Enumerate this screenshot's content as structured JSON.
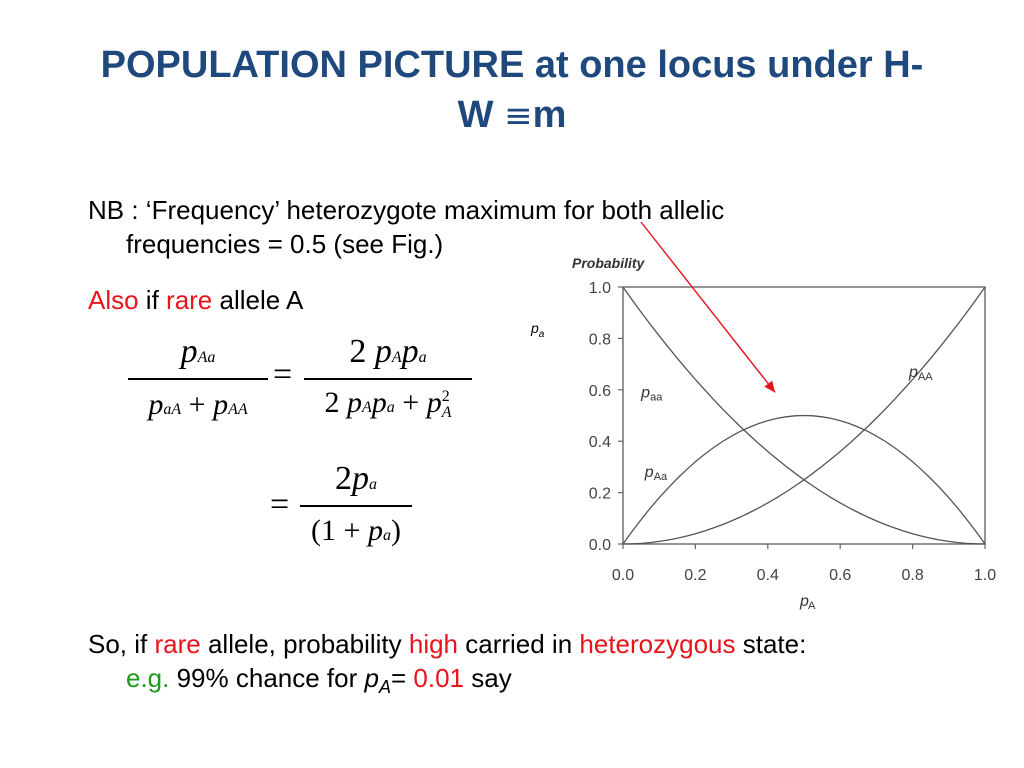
{
  "title": {
    "line1": "POPULATION PICTURE at one locus under H-",
    "line2_pre": "W ",
    "line2_sym": "≡",
    "line2_post": "m"
  },
  "body": {
    "nb_line1": "NB : ‘Frequency’ heterozygote maximum for both allelic",
    "nb_line2": "frequencies  = 0.5 (see Fig.)",
    "also": "Also",
    "if": " if ",
    "rare": "rare",
    "allele_a": " allele A",
    "so_line1_a": "So, if ",
    "so_rare": "rare",
    "so_line1_b": " allele, probability ",
    "so_high": "high",
    "so_line1_c": " carried in ",
    "so_hetero": "heterozygous",
    "so_line1_d": " state:",
    "eg": "e.g.",
    "so_line2_a": " 99% chance for ",
    "so_pa": "p",
    "so_pa_sub": "A",
    "so_line2_b": "= ",
    "so_value": "0.01",
    "so_line2_c": " say",
    "pa_note": "p",
    "pa_note_sub": "a"
  },
  "formula": {
    "num1": "p",
    "num1_sub": "Aa",
    "den1_a": "p",
    "den1_a_sub": "aA",
    "den1_plus": " + ",
    "den1_b": "p",
    "den1_b_sub": "AA",
    "equals": "=",
    "num2_coef": "2",
    "num2_p1": "p",
    "num2_p1_sub": "A",
    "num2_p2": "p",
    "num2_p2_sub": "a",
    "den2_coef": "2",
    "den2_p1": "p",
    "den2_p1_sub": "A",
    "den2_p2": "p",
    "den2_p2_sub": "a",
    "den2_plus": " + ",
    "den2_p3": "p",
    "den2_p3_sub": "A",
    "den2_p3_sup": "2",
    "num3_coef": "2",
    "num3_p": "p",
    "num3_p_sub": "a",
    "den3_open": "(1",
    "den3_plus": " + ",
    "den3_p": "p",
    "den3_p_sub": "a",
    "den3_close": ")"
  },
  "chart_data": {
    "type": "line",
    "ylabel": "Probability",
    "xlabel": "p",
    "xlabel_sub": "A",
    "xlim": [
      0,
      1
    ],
    "ylim": [
      0,
      1
    ],
    "x_ticks": [
      "0.0",
      "0.2",
      "0.4",
      "0.6",
      "0.8",
      "1.0"
    ],
    "y_ticks": [
      "0.0",
      "0.2",
      "0.4",
      "0.6",
      "0.8",
      "1.0"
    ],
    "grid": false,
    "series": [
      {
        "name": "p",
        "sub": "aa",
        "formula": "(1-x)^2",
        "label_at": [
          0.05,
          0.57
        ]
      },
      {
        "name": "p",
        "sub": "Aa",
        "formula": "2x(1-x)",
        "label_at": [
          0.06,
          0.26
        ]
      },
      {
        "name": "p",
        "sub": "AA",
        "formula": "x^2",
        "label_at": [
          0.79,
          0.65
        ]
      }
    ],
    "samples": 41,
    "arrow": {
      "color": "#e8141b",
      "from_text": "maximum",
      "to": [
        0.42,
        0.59
      ]
    }
  }
}
